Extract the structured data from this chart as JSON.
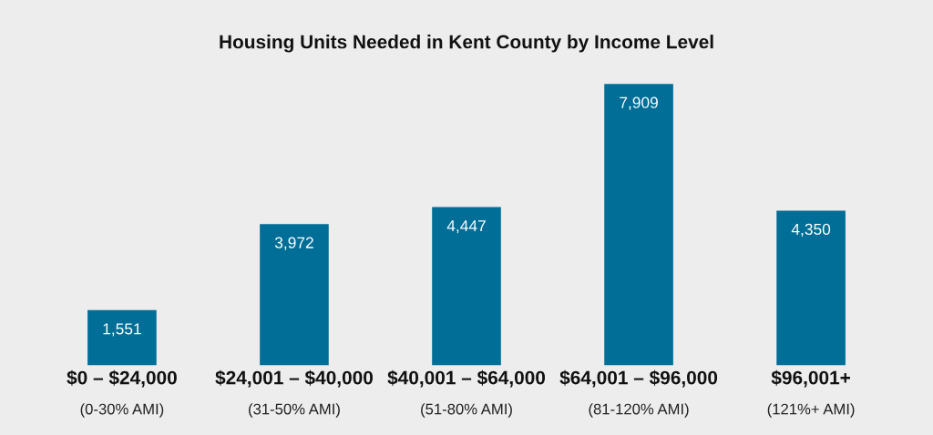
{
  "chart_data": {
    "type": "bar",
    "title": "Housing Units Needed in Kent County by Income Level",
    "categories": [
      "$0 – $24,000\n(0-30% AMI)",
      "$24,001 – $40,000\n(31-50% AMI)",
      "$40,001 – $64,000\n(51-80% AMI)",
      "$64,001 – $96,000\n(81-120% AMI)",
      "$96,001+\n(121%+ AMI)"
    ],
    "values": [
      1551,
      3972,
      4447,
      7909,
      4350
    ],
    "value_labels": [
      "1,551",
      "3,972",
      "4,447",
      "7,909",
      "4,350"
    ],
    "color": "#006e96",
    "grid": false,
    "legend": false
  }
}
